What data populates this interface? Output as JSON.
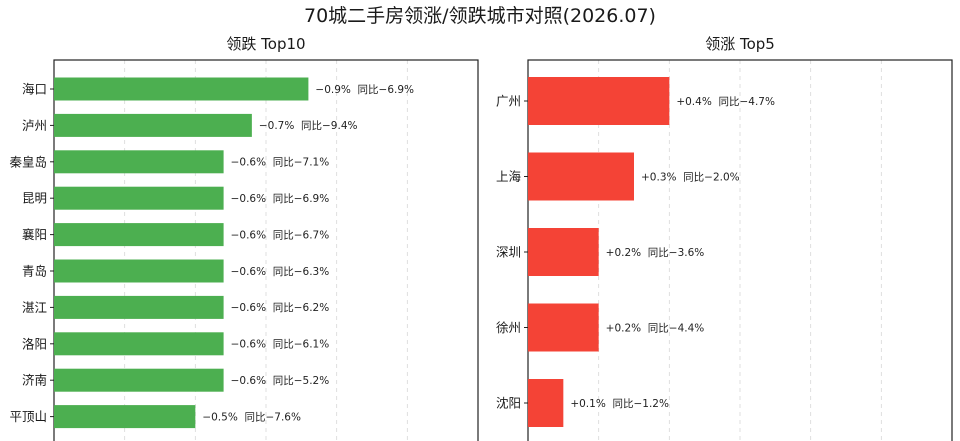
{
  "figure": {
    "title": "70城二手房领涨/领跌城市对照(2026.07)"
  },
  "chart_data": [
    {
      "type": "bar",
      "orientation": "horizontal",
      "title": "领跌 Top10",
      "color": "#4caf50",
      "magnitude_direction": "decline",
      "grid": true,
      "categories": [
        "海口",
        "泸州",
        "秦皇岛",
        "昆明",
        "襄阳",
        "青岛",
        "湛江",
        "洛阳",
        "济南",
        "平顶山"
      ],
      "values": [
        -0.9,
        -0.7,
        -0.6,
        -0.6,
        -0.6,
        -0.6,
        -0.6,
        -0.6,
        -0.6,
        -0.5
      ],
      "yoy": [
        -6.9,
        -9.4,
        -7.1,
        -6.9,
        -6.7,
        -6.3,
        -6.2,
        -6.1,
        -5.2,
        -7.6
      ],
      "labels": [
        "−0.9%  同比−6.9%",
        "−0.7%  同比−9.4%",
        "−0.6%  同比−7.1%",
        "−0.6%  同比−6.9%",
        "−0.6%  同比−6.7%",
        "−0.6%  同比−6.3%",
        "−0.6%  同比−6.2%",
        "−0.6%  同比−6.1%",
        "−0.6%  同比−5.2%",
        "−0.5%  同比−7.6%"
      ],
      "xlim": [
        0,
        1.5
      ]
    },
    {
      "type": "bar",
      "orientation": "horizontal",
      "title": "领涨 Top5",
      "color": "#f44336",
      "magnitude_direction": "rise",
      "grid": true,
      "categories": [
        "广州",
        "上海",
        "深圳",
        "徐州",
        "沈阳"
      ],
      "values": [
        0.4,
        0.3,
        0.2,
        0.2,
        0.1
      ],
      "yoy": [
        -4.7,
        -2.0,
        -3.6,
        -4.4,
        -1.2
      ],
      "labels": [
        "+0.4%  同比−4.7%",
        "+0.3%  同比−2.0%",
        "+0.2%  同比−3.6%",
        "+0.2%  同比−4.4%",
        "+0.1%  同比−1.2%"
      ],
      "xlim": [
        0,
        1.2
      ]
    }
  ]
}
